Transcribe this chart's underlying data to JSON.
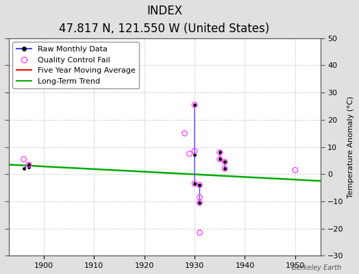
{
  "title": "INDEX",
  "subtitle": "47.817 N, 121.550 W (United States)",
  "ylabel_right": "Temperature Anomaly (°C)",
  "watermark": "Berkeley Earth",
  "xlim": [
    1893,
    1955
  ],
  "ylim": [
    -30,
    50
  ],
  "xticks": [
    1900,
    1910,
    1920,
    1930,
    1940,
    1950
  ],
  "yticks": [
    -30,
    -20,
    -10,
    0,
    10,
    20,
    30,
    40,
    50
  ],
  "background_color": "#e0e0e0",
  "plot_bg_color": "#ffffff",
  "raw_line_color": "#4444ff",
  "raw_dot_color": "#000000",
  "qc_color": "#ff44ff",
  "moving_avg_color": "#ff0000",
  "trend_color": "#00aa00",
  "legend_fontsize": 8,
  "title_fontsize": 12,
  "subtitle_fontsize": 9,
  "raw_segments": {
    "x": [
      1896,
      1897,
      1897
    ],
    "y": [
      2.0,
      3.5,
      2.5
    ]
  },
  "raw_cluster_1930": {
    "x": [
      1930,
      1930,
      1930,
      1931,
      1931
    ],
    "y": [
      25.5,
      7.0,
      -3.5,
      -4.0,
      -10.5
    ]
  },
  "raw_cluster_1935": {
    "x": [
      1935,
      1935,
      1936,
      1936
    ],
    "y": [
      8.0,
      5.5,
      4.5,
      2.0
    ]
  },
  "qc_fail_x": [
    1896,
    1897,
    1928,
    1929,
    1930,
    1930,
    1930,
    1931,
    1931,
    1931,
    1931,
    1935,
    1935,
    1936,
    1936,
    1950
  ],
  "qc_fail_y": [
    5.5,
    3.5,
    15.0,
    7.5,
    8.5,
    25.5,
    -3.5,
    -4.0,
    -8.5,
    -10.5,
    -21.5,
    8.0,
    5.5,
    4.5,
    2.0,
    1.5
  ],
  "trend_x": [
    1893,
    1955
  ],
  "trend_y": [
    3.5,
    -2.5
  ]
}
